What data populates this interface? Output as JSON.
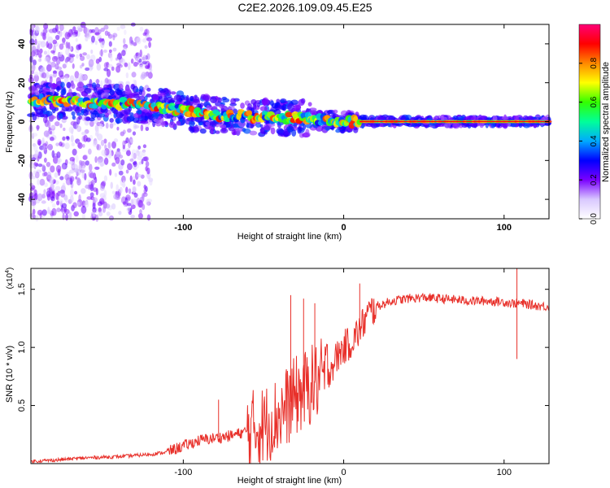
{
  "title": "C2E2.2026.109.09.45.E25",
  "chart_data": [
    {
      "type": "heatmap",
      "title": "C2E2.2026.109.09.45.E25",
      "xlabel": "Height of straight line (km)",
      "ylabel": "Frequency (Hz)",
      "xlim": [
        -195,
        128
      ],
      "ylim": [
        -50,
        50
      ],
      "xticks": [
        -100,
        0,
        100
      ],
      "xtick_labels": [
        "-100",
        "0",
        "100"
      ],
      "yticks": [
        -40,
        -20,
        0,
        20,
        40
      ],
      "ytick_labels": [
        "-40",
        "-20",
        "0",
        "20",
        "40"
      ],
      "ridge": {
        "x": [
          -195,
          -160,
          -130,
          -110,
          -90,
          -70,
          -50,
          -30,
          -15,
          0,
          10,
          30,
          60,
          90,
          128
        ],
        "frequency": [
          11,
          10,
          9,
          7,
          4,
          3,
          2,
          2,
          1,
          0,
          0,
          0,
          0,
          0,
          0
        ]
      },
      "colorbar": {
        "label": "Normalized spectral amplitude",
        "range": [
          0.0,
          1.0
        ],
        "ticks": [
          0.0,
          0.2,
          0.4,
          0.6,
          0.8
        ],
        "tick_labels": [
          "0.0",
          "0.2",
          "0.4",
          "0.6",
          "0.8"
        ],
        "colors": [
          "#ffffff",
          "#d9c8ff",
          "#7a00ff",
          "#0000ff",
          "#00aaff",
          "#00ff99",
          "#33ff00",
          "#ffff00",
          "#ff8800",
          "#ff0000",
          "#ff0077"
        ]
      }
    },
    {
      "type": "line",
      "xlabel": "Height of straight line (km)",
      "ylabel": "SNR (10 * v/v)",
      "scale_label": "(x10",
      "scale_exponent": "4",
      "scale_suffix": ")",
      "xlim": [
        -195,
        128
      ],
      "ylim": [
        0,
        1.68
      ],
      "xticks": [
        -100,
        0,
        100
      ],
      "xtick_labels": [
        "-100",
        "0",
        "100"
      ],
      "yticks": [
        0.5,
        1.0,
        1.5
      ],
      "ytick_labels": [
        "0.5",
        "1.0",
        "1.5"
      ],
      "series": [
        {
          "name": "SNR",
          "color": "#e8302a",
          "x": [
            -195,
            -180,
            -160,
            -140,
            -120,
            -110,
            -100,
            -90,
            -80,
            -70,
            -60,
            -50,
            -40,
            -35,
            -30,
            -25,
            -20,
            -15,
            -10,
            -5,
            0,
            5,
            10,
            15,
            20,
            30,
            40,
            50,
            60,
            70,
            80,
            90,
            100,
            105,
            110,
            115,
            120,
            128
          ],
          "y": [
            0.02,
            0.03,
            0.05,
            0.06,
            0.08,
            0.1,
            0.15,
            0.2,
            0.22,
            0.24,
            0.28,
            0.33,
            0.42,
            0.5,
            0.58,
            0.62,
            0.68,
            0.72,
            0.78,
            0.9,
            1.0,
            1.05,
            1.15,
            1.28,
            1.35,
            1.4,
            1.42,
            1.43,
            1.42,
            1.41,
            1.4,
            1.4,
            1.39,
            1.38,
            1.38,
            1.37,
            1.36,
            1.35
          ]
        }
      ],
      "spikes": {
        "x": [
          -78,
          -33,
          -25,
          -18,
          10,
          108
        ],
        "y": [
          0.55,
          1.45,
          1.42,
          1.38,
          1.55,
          1.68
        ]
      },
      "dips": {
        "x": [
          108
        ],
        "y": [
          0.9
        ]
      }
    }
  ]
}
